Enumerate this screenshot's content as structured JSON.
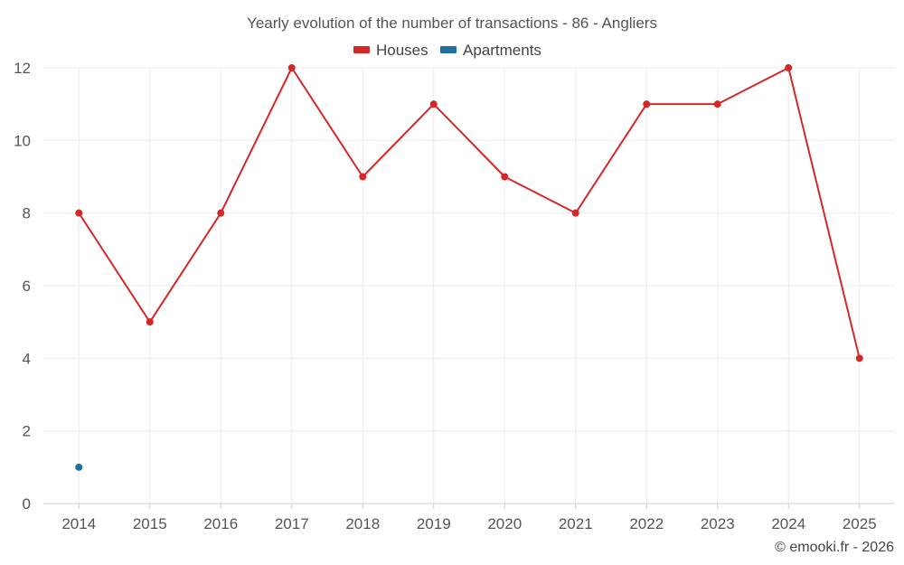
{
  "chart_data": {
    "type": "line",
    "title": "Yearly evolution of the number of transactions - 86 - Angliers",
    "categories": [
      "2014",
      "2015",
      "2016",
      "2017",
      "2018",
      "2019",
      "2020",
      "2021",
      "2022",
      "2023",
      "2024",
      "2025"
    ],
    "series": [
      {
        "name": "Houses",
        "color": "#d62728",
        "values": [
          8,
          5,
          8,
          12,
          9,
          11,
          9,
          8,
          11,
          11,
          12,
          4
        ]
      },
      {
        "name": "Apartments",
        "color": "#1f6fa0",
        "values": [
          1,
          null,
          null,
          null,
          null,
          null,
          null,
          null,
          null,
          null,
          null,
          null
        ]
      }
    ],
    "ylim": [
      0,
      12
    ],
    "yticks": [
      0,
      2,
      4,
      6,
      8,
      10,
      12
    ],
    "xlabel": "",
    "ylabel": "",
    "grid": true,
    "legend_position": "top-center"
  },
  "credit": "© emooki.fr - 2026"
}
